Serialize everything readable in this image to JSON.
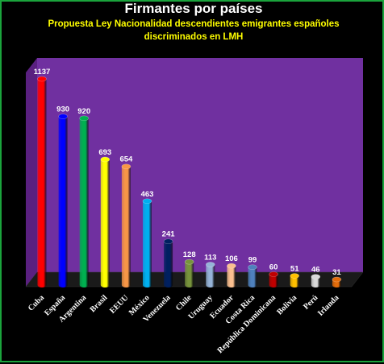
{
  "chart_data": {
    "type": "bar",
    "title": "Firmantes por países",
    "subtitle": "Propuesta Ley Nacionalidad descendientes emigrantes españoles discriminados en LMH",
    "subtitle_lines": [
      "Propuesta Ley Nacionalidad descendientes emigrantes españoles",
      "discriminados en LMH"
    ],
    "categories": [
      "Cuba",
      "España",
      "Argentina",
      "Brasil",
      "EEUU",
      "México",
      "Venezuela",
      "Chile",
      "Uruguay",
      "Ecuador",
      "Costa Rica",
      "República Dominicana",
      "Bolivia",
      "Perú",
      "Irlanda"
    ],
    "values": [
      1137,
      930,
      920,
      693,
      654,
      463,
      241,
      128,
      113,
      106,
      99,
      60,
      51,
      46,
      31
    ],
    "ylim": [
      0,
      1137
    ],
    "grid": false,
    "legend": "none",
    "bar_shape": "cylinder",
    "colors": {
      "background": "#000000",
      "plot_wall": "#7030a0",
      "plot_side": "#5a2080",
      "floor": "#1a1a1a",
      "frame": "#1aa33c",
      "bars": [
        "#ff0000",
        "#0000ff",
        "#00b050",
        "#ffff00",
        "#f79646",
        "#00b0f0",
        "#002060",
        "#77933c",
        "#95b3d7",
        "#fabf8f",
        "#4f81bd",
        "#c00000",
        "#ffc000",
        "#d9d9d9",
        "#e46c0a"
      ]
    }
  }
}
